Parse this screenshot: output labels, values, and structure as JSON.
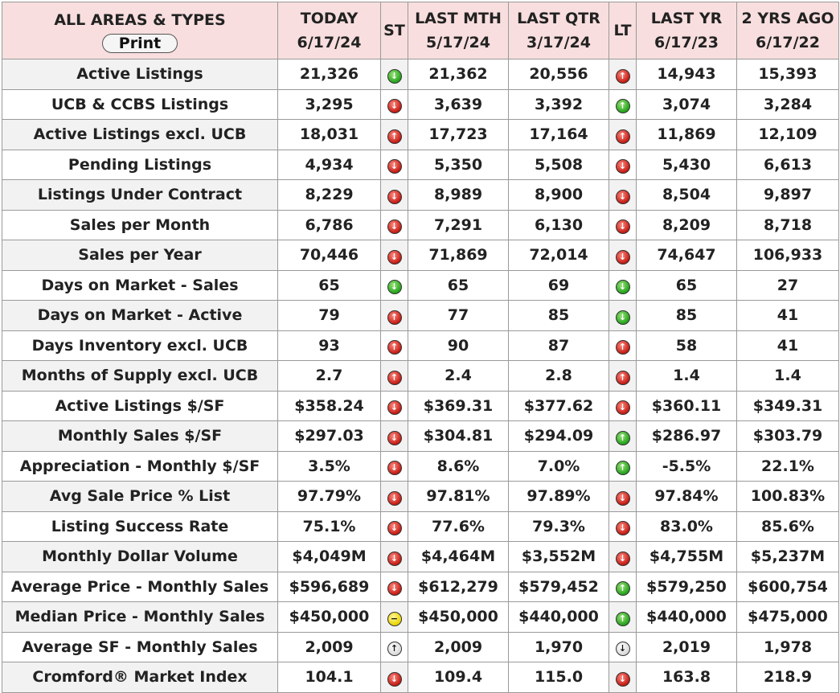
{
  "header": {
    "title": "ALL AREAS & TYPES",
    "print_label": "Print",
    "columns": [
      {
        "l1": "TODAY",
        "l2": "6/17/24"
      },
      {
        "l1": "ST",
        "l2": ""
      },
      {
        "l1": "LAST MTH",
        "l2": "5/17/24"
      },
      {
        "l1": "LAST QTR",
        "l2": "3/17/24"
      },
      {
        "l1": "LT",
        "l2": ""
      },
      {
        "l1": "LAST YR",
        "l2": "6/17/23"
      },
      {
        "l1": "2 YRS AGO",
        "l2": "6/17/22"
      }
    ]
  },
  "icon_colors": {
    "green": "#22a21a",
    "red": "#c31a12",
    "yellow": "#e8d400",
    "white": "#ffffff"
  },
  "rows": [
    {
      "label": "Active Listings",
      "today": "21,326",
      "st": "green-down",
      "last_mth": "21,362",
      "last_qtr": "20,556",
      "lt": "red-up",
      "last_yr": "14,943",
      "two_yrs": "15,393"
    },
    {
      "label": "UCB & CCBS Listings",
      "today": "3,295",
      "st": "red-down",
      "last_mth": "3,639",
      "last_qtr": "3,392",
      "lt": "green-up",
      "last_yr": "3,074",
      "two_yrs": "3,284"
    },
    {
      "label": "Active Listings excl. UCB",
      "today": "18,031",
      "st": "red-up",
      "last_mth": "17,723",
      "last_qtr": "17,164",
      "lt": "red-up",
      "last_yr": "11,869",
      "two_yrs": "12,109"
    },
    {
      "label": "Pending Listings",
      "today": "4,934",
      "st": "red-down",
      "last_mth": "5,350",
      "last_qtr": "5,508",
      "lt": "red-down",
      "last_yr": "5,430",
      "two_yrs": "6,613"
    },
    {
      "label": "Listings Under Contract",
      "today": "8,229",
      "st": "red-down",
      "last_mth": "8,989",
      "last_qtr": "8,900",
      "lt": "red-down",
      "last_yr": "8,504",
      "two_yrs": "9,897"
    },
    {
      "label": "Sales per Month",
      "today": "6,786",
      "st": "red-down",
      "last_mth": "7,291",
      "last_qtr": "6,130",
      "lt": "red-down",
      "last_yr": "8,209",
      "two_yrs": "8,718"
    },
    {
      "label": "Sales per Year",
      "today": "70,446",
      "st": "red-down",
      "last_mth": "71,869",
      "last_qtr": "72,014",
      "lt": "red-down",
      "last_yr": "74,647",
      "two_yrs": "106,933"
    },
    {
      "label": "Days on Market - Sales",
      "today": "65",
      "st": "green-down",
      "last_mth": "65",
      "last_qtr": "69",
      "lt": "green-down",
      "last_yr": "65",
      "two_yrs": "27"
    },
    {
      "label": "Days on Market - Active",
      "today": "79",
      "st": "red-up",
      "last_mth": "77",
      "last_qtr": "85",
      "lt": "green-down",
      "last_yr": "85",
      "two_yrs": "41"
    },
    {
      "label": "Days Inventory excl. UCB",
      "today": "93",
      "st": "red-up",
      "last_mth": "90",
      "last_qtr": "87",
      "lt": "red-up",
      "last_yr": "58",
      "two_yrs": "41"
    },
    {
      "label": "Months of Supply excl. UCB",
      "today": "2.7",
      "st": "red-up",
      "last_mth": "2.4",
      "last_qtr": "2.8",
      "lt": "red-up",
      "last_yr": "1.4",
      "two_yrs": "1.4"
    },
    {
      "label": "Active Listings $/SF",
      "today": "$358.24",
      "st": "red-down",
      "last_mth": "$369.31",
      "last_qtr": "$377.62",
      "lt": "red-down",
      "last_yr": "$360.11",
      "two_yrs": "$349.31"
    },
    {
      "label": "Monthly Sales $/SF",
      "today": "$297.03",
      "st": "red-down",
      "last_mth": "$304.81",
      "last_qtr": "$294.09",
      "lt": "green-up",
      "last_yr": "$286.97",
      "two_yrs": "$303.79"
    },
    {
      "label": "Appreciation - Monthly $/SF",
      "today": "3.5%",
      "st": "red-down",
      "last_mth": "8.6%",
      "last_qtr": "7.0%",
      "lt": "green-up",
      "last_yr": "-5.5%",
      "two_yrs": "22.1%"
    },
    {
      "label": "Avg Sale Price % List",
      "today": "97.79%",
      "st": "red-down",
      "last_mth": "97.81%",
      "last_qtr": "97.89%",
      "lt": "red-down",
      "last_yr": "97.84%",
      "two_yrs": "100.83%"
    },
    {
      "label": "Listing Success Rate",
      "today": "75.1%",
      "st": "red-down",
      "last_mth": "77.6%",
      "last_qtr": "79.3%",
      "lt": "red-down",
      "last_yr": "83.0%",
      "two_yrs": "85.6%"
    },
    {
      "label": "Monthly Dollar Volume",
      "today": "$4,049M",
      "st": "red-down",
      "last_mth": "$4,464M",
      "last_qtr": "$3,552M",
      "lt": "red-down",
      "last_yr": "$4,755M",
      "two_yrs": "$5,237M"
    },
    {
      "label": "Average Price - Monthly Sales",
      "today": "$596,689",
      "st": "red-down",
      "last_mth": "$612,279",
      "last_qtr": "$579,452",
      "lt": "green-up",
      "last_yr": "$579,250",
      "two_yrs": "$600,754"
    },
    {
      "label": "Median Price - Monthly Sales",
      "today": "$450,000",
      "st": "yellow-neutral",
      "last_mth": "$450,000",
      "last_qtr": "$440,000",
      "lt": "green-up",
      "last_yr": "$440,000",
      "two_yrs": "$475,000"
    },
    {
      "label": "Average SF - Monthly Sales",
      "today": "2,009",
      "st": "white-up",
      "last_mth": "2,009",
      "last_qtr": "1,970",
      "lt": "white-down",
      "last_yr": "2,019",
      "two_yrs": "1,978"
    },
    {
      "label": "Cromford® Market Index",
      "today": "104.1",
      "st": "red-down",
      "last_mth": "109.4",
      "last_qtr": "115.0",
      "lt": "red-down",
      "last_yr": "163.8",
      "two_yrs": "218.9"
    }
  ]
}
